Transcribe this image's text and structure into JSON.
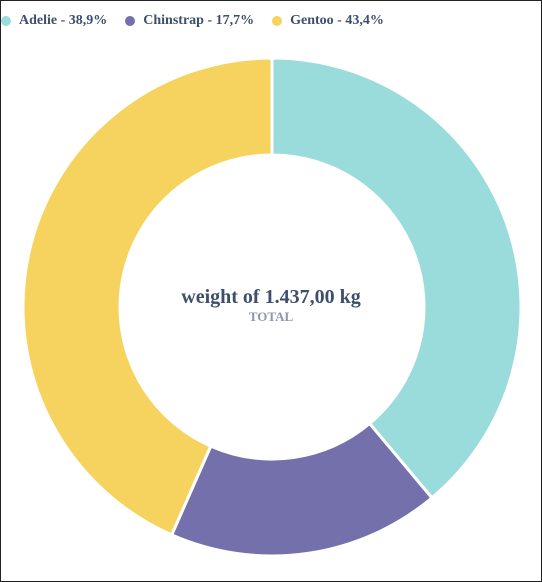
{
  "chart_data": {
    "type": "pie",
    "donut": true,
    "categories": [
      "Adelie",
      "Chinstrap",
      "Gentoo"
    ],
    "values": [
      38.9,
      17.7,
      43.4
    ],
    "legend_labels": [
      "Adelie - 38,9%",
      "Chinstrap - 17,7%",
      "Gentoo - 43,4%"
    ],
    "colors": [
      "#9adbdb",
      "#7470ab",
      "#f6d35f"
    ],
    "legend_position": "top-left",
    "center_value": "weight of 1.437,00 kg",
    "center_caption": "TOTAL"
  }
}
